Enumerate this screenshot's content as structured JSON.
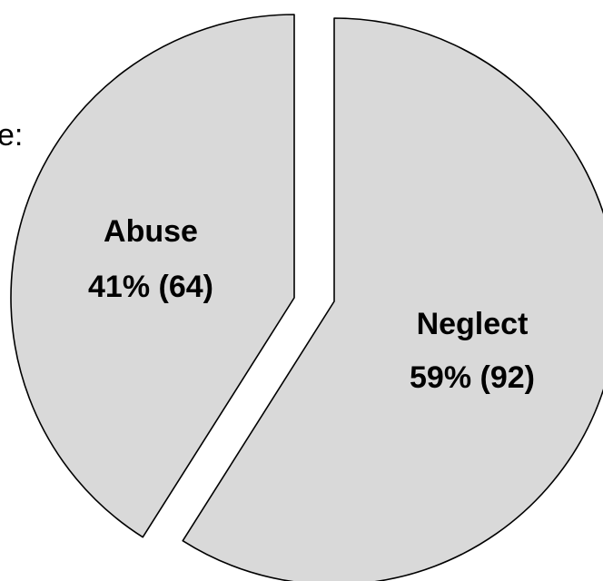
{
  "chart_data": {
    "type": "pie",
    "exploded": true,
    "slices": [
      {
        "label": "Abuse",
        "percent_label": "41% (64)",
        "percent": 41,
        "value": 64,
        "color": "#d9d9d9"
      },
      {
        "label": "Neglect",
        "percent_label": "59% (92)",
        "percent": 59,
        "value": 92,
        "color": "#d9d9d9"
      }
    ]
  },
  "clipped_text": "e:"
}
